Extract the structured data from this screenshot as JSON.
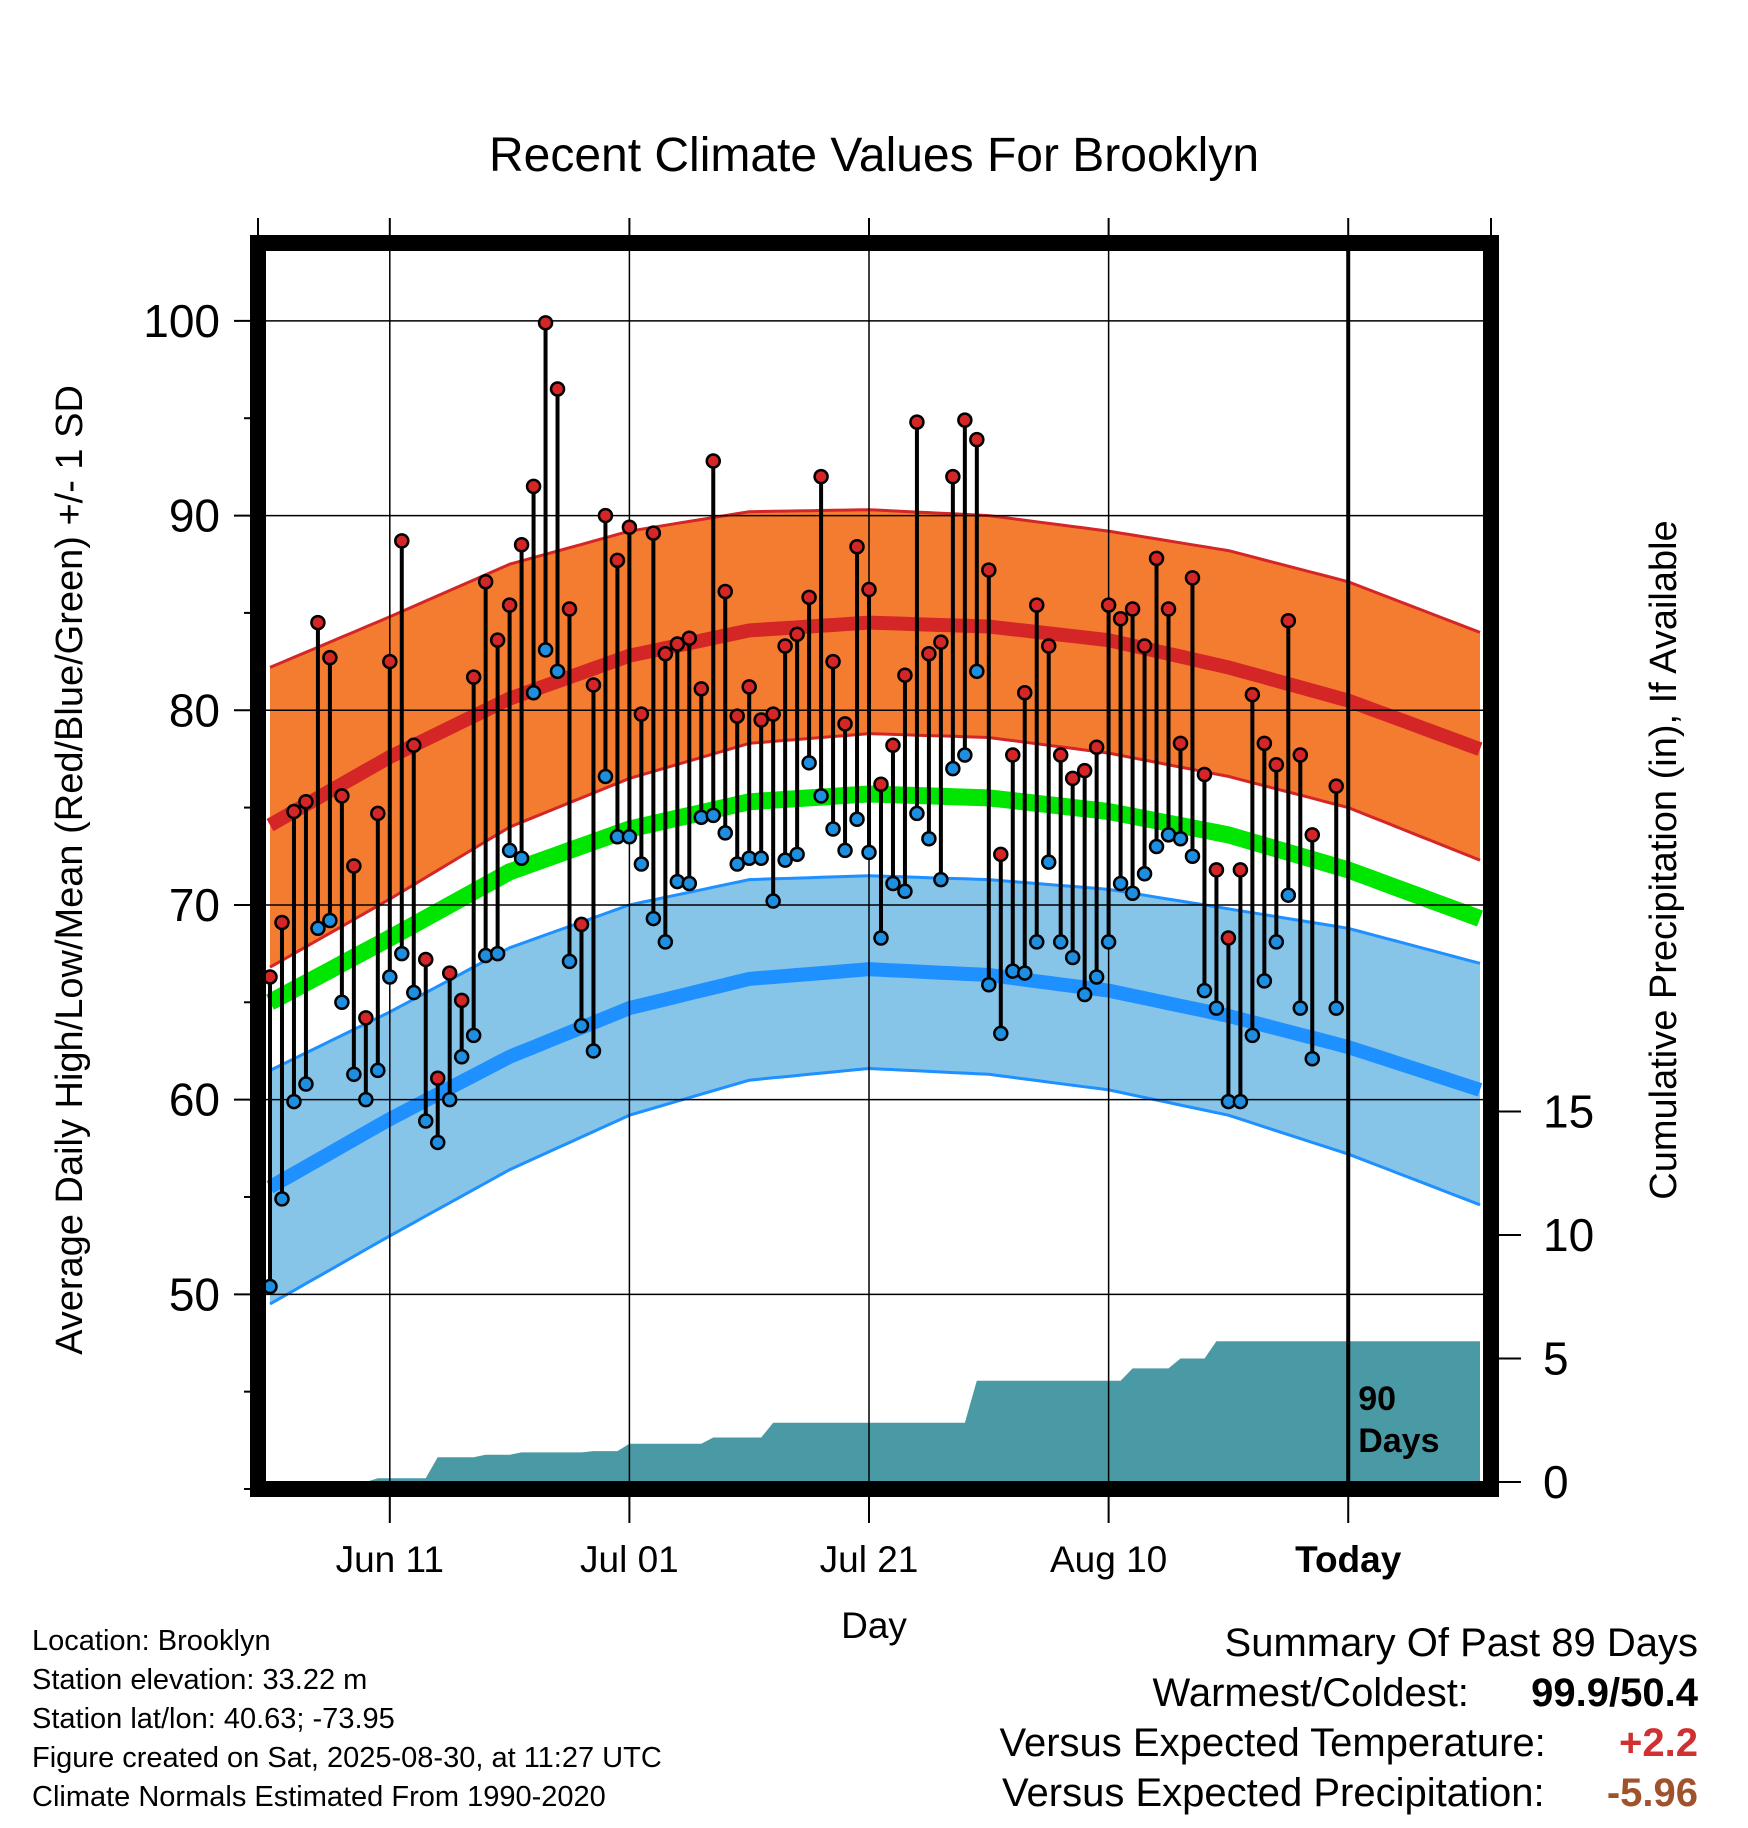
{
  "title": "Recent Climate Values For Brooklyn",
  "info": {
    "location": "Location: Brooklyn",
    "elevation": "Station elevation: 33.22 m",
    "latlon": "Station lat/lon: 40.63; -73.95",
    "created": "Figure created on Sat, 2025-08-30, at 11:27 UTC",
    "normals": "Climate Normals Estimated From 1990-2020"
  },
  "summary": {
    "heading": "Summary Of Past 89 Days",
    "warm_label": "Warmest/Coldest:",
    "warm_value": "99.9/50.4",
    "temp_label": "Versus Expected Temperature:",
    "temp_value": "+2.2",
    "temp_color": "#d03030",
    "precip_label": "Versus Expected Precipitation:",
    "precip_value": "-5.96",
    "precip_color": "#a0522d"
  },
  "chart_data": {
    "type": "line",
    "title": "Recent Climate Values For Brooklyn",
    "xlabel": "Day",
    "ylabel": "Average Daily High/Low/Mean (Red/Blue/Green) +/- 1 SD",
    "y2label": "Cumulative Precipitation (in), If Available",
    "x_range": [
      "2025-06-01",
      "2025-09-10"
    ],
    "x_ticks": [
      {
        "date": "2025-06-11",
        "label": "Jun 11"
      },
      {
        "date": "2025-07-01",
        "label": "Jul 01"
      },
      {
        "date": "2025-07-21",
        "label": "Jul 21"
      },
      {
        "date": "2025-08-10",
        "label": "Aug 10"
      },
      {
        "date": "2025-08-30",
        "label": "Today"
      }
    ],
    "ylim": [
      40,
      104
    ],
    "y_ticks": [
      50,
      60,
      70,
      80,
      90,
      100
    ],
    "y2_ticks": [
      0,
      5,
      10,
      15
    ],
    "grid": true,
    "annotation": [
      "90",
      "Days"
    ],
    "colors": {
      "high_band": "#f47c30",
      "high_line": "#d42626",
      "low_band": "#86c4e8",
      "low_line": "#1e90ff",
      "mean_line": "#00e600",
      "precip": "#4a9aa5",
      "high_marker": "#d42626",
      "low_marker": "#1e8fe0"
    },
    "normals": {
      "dates": [
        "2025-06-01",
        "2025-06-11",
        "2025-06-21",
        "2025-07-01",
        "2025-07-11",
        "2025-07-21",
        "2025-07-31",
        "2025-08-10",
        "2025-08-20",
        "2025-08-30",
        "2025-09-10"
      ],
      "high": [
        74.1,
        77.6,
        80.6,
        82.8,
        84.1,
        84.5,
        84.3,
        83.6,
        82.2,
        80.5,
        78.0
      ],
      "high_upper": [
        82.2,
        84.8,
        87.5,
        89.2,
        90.2,
        90.3,
        90.0,
        89.2,
        88.2,
        86.6,
        84.0
      ],
      "high_lower": [
        66.8,
        70.3,
        74.0,
        76.5,
        78.3,
        78.8,
        78.6,
        77.8,
        76.6,
        75.0,
        72.3
      ],
      "mean": [
        65.0,
        68.3,
        71.7,
        73.9,
        75.3,
        75.7,
        75.5,
        74.8,
        73.6,
        71.8,
        69.3
      ],
      "low": [
        55.5,
        59.0,
        62.2,
        64.7,
        66.2,
        66.7,
        66.4,
        65.6,
        64.3,
        62.7,
        60.5
      ],
      "low_upper": [
        61.5,
        64.5,
        67.8,
        70.0,
        71.3,
        71.5,
        71.3,
        70.8,
        69.8,
        68.8,
        67.0
      ],
      "low_lower": [
        49.5,
        53.0,
        56.4,
        59.2,
        61.0,
        61.6,
        61.3,
        60.5,
        59.2,
        57.2,
        54.6
      ]
    },
    "daily": {
      "start_date": "2025-06-01",
      "high": [
        66.3,
        69.1,
        74.8,
        75.3,
        84.5,
        82.7,
        75.6,
        72.0,
        64.2,
        74.7,
        82.5,
        88.7,
        78.2,
        67.2,
        61.1,
        66.5,
        65.1,
        81.7,
        86.6,
        83.6,
        85.4,
        88.5,
        91.5,
        99.9,
        96.5,
        85.2,
        69.0,
        81.3,
        90.0,
        87.7,
        89.4,
        79.8,
        89.1,
        82.9,
        83.4,
        83.7,
        81.1,
        92.8,
        86.1,
        79.7,
        81.2,
        79.5,
        79.8,
        83.3,
        83.9,
        85.8,
        92.0,
        82.5,
        79.3,
        88.4,
        86.2,
        76.2,
        78.2,
        81.8,
        94.8,
        82.9,
        83.5,
        92.0,
        94.9,
        93.9,
        87.2,
        72.6,
        77.7,
        80.9,
        85.4,
        83.3,
        77.7,
        76.5,
        76.9,
        78.1,
        85.4,
        84.7,
        85.2,
        83.3,
        87.8,
        85.2,
        78.3,
        86.8,
        76.7,
        71.8,
        68.3,
        71.8,
        80.8,
        78.3,
        77.2,
        84.6,
        77.7,
        73.6,
        null,
        76.1
      ],
      "low": [
        50.4,
        54.9,
        59.9,
        60.8,
        68.8,
        69.2,
        65.0,
        61.3,
        60.0,
        61.5,
        66.3,
        67.5,
        65.5,
        58.9,
        57.8,
        60.0,
        62.2,
        63.3,
        67.4,
        67.5,
        72.8,
        72.4,
        80.9,
        83.1,
        82.0,
        67.1,
        63.8,
        62.5,
        76.6,
        73.5,
        73.5,
        72.1,
        69.3,
        68.1,
        71.2,
        71.1,
        74.5,
        74.6,
        73.7,
        72.1,
        72.4,
        72.4,
        70.2,
        72.3,
        72.6,
        77.3,
        75.6,
        73.9,
        72.8,
        74.4,
        72.7,
        68.3,
        71.1,
        70.7,
        74.7,
        73.4,
        71.3,
        77.0,
        77.7,
        82.0,
        65.9,
        63.4,
        66.6,
        66.5,
        68.1,
        72.2,
        68.1,
        67.3,
        65.4,
        66.3,
        68.1,
        71.1,
        70.6,
        71.6,
        73.0,
        73.6,
        73.4,
        72.5,
        65.6,
        64.7,
        59.9,
        59.9,
        63.3,
        66.1,
        68.1,
        70.5,
        64.7,
        62.1,
        null,
        64.7
      ]
    },
    "precip_cumulative": {
      "dates": [
        "2025-06-01",
        "2025-06-09",
        "2025-06-10",
        "2025-06-14",
        "2025-06-15",
        "2025-06-18",
        "2025-06-19",
        "2025-06-21",
        "2025-06-22",
        "2025-06-27",
        "2025-06-28",
        "2025-06-30",
        "2025-07-01",
        "2025-07-07",
        "2025-07-08",
        "2025-07-12",
        "2025-07-13",
        "2025-07-29",
        "2025-07-30",
        "2025-08-11",
        "2025-08-12",
        "2025-08-15",
        "2025-08-16",
        "2025-08-18",
        "2025-08-19",
        "2025-09-10"
      ],
      "values": [
        0.0,
        0.0,
        0.15,
        0.15,
        1.0,
        1.0,
        1.1,
        1.1,
        1.2,
        1.2,
        1.25,
        1.25,
        1.55,
        1.55,
        1.8,
        1.8,
        2.4,
        2.4,
        4.1,
        4.1,
        4.6,
        4.6,
        5.0,
        5.0,
        5.7,
        5.7
      ]
    }
  }
}
